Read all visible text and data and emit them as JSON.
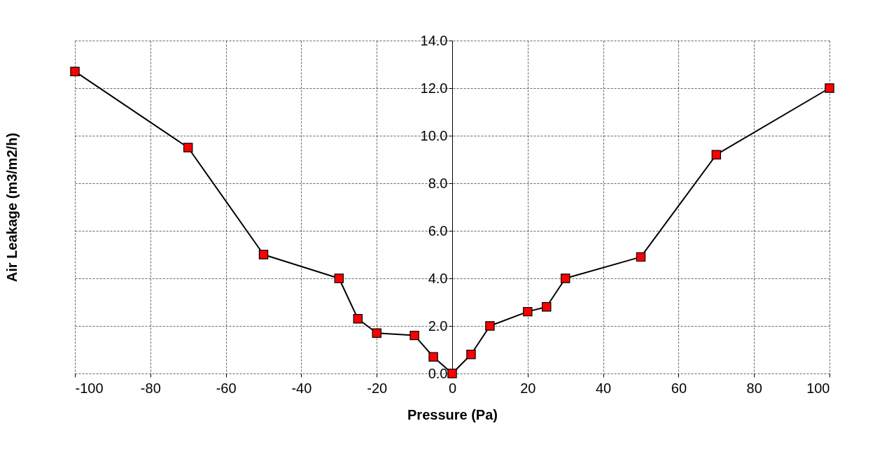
{
  "chart_data": {
    "type": "line",
    "xlabel": "Pressure (Pa)",
    "ylabel": "Air Leakage (m3/m2/h)",
    "x": [
      -100,
      -70,
      -50,
      -30,
      -25,
      -20,
      -10,
      -5,
      0,
      5,
      10,
      20,
      25,
      30,
      50,
      70,
      100
    ],
    "series": [
      {
        "color": "#ff0000",
        "values": [
          12.7,
          9.5,
          5.0,
          4.0,
          2.3,
          1.7,
          1.6,
          0.7,
          0.0,
          0.8,
          2.0,
          2.6,
          2.8,
          4.0,
          4.9,
          9.2,
          12.0
        ]
      }
    ],
    "xlim": [
      -100,
      100
    ],
    "xticks": [
      -100,
      -80,
      -60,
      -40,
      -20,
      0,
      20,
      40,
      60,
      80,
      100
    ],
    "ylim": [
      0,
      14
    ],
    "yticks": [
      {
        "value": 0,
        "label": "0.0"
      },
      {
        "value": 2,
        "label": "2.0"
      },
      {
        "value": 4,
        "label": "4.0"
      },
      {
        "value": 6,
        "label": "6.0"
      },
      {
        "value": 8,
        "label": "8.0"
      },
      {
        "value": 10,
        "label": "10.0"
      },
      {
        "value": 12,
        "label": "12.0"
      },
      {
        "value": 14,
        "label": "14.0"
      }
    ],
    "grid": true,
    "marker": "square",
    "line_style": "solid"
  }
}
